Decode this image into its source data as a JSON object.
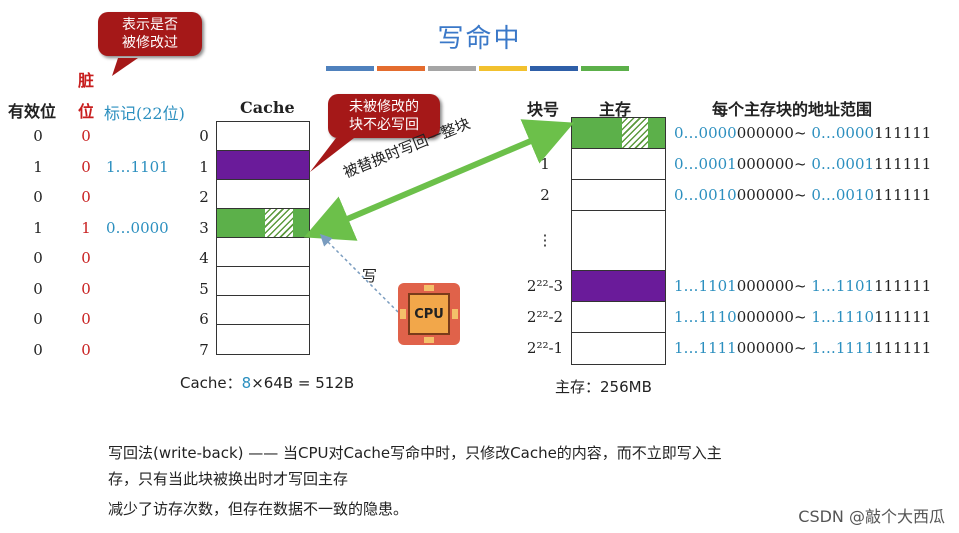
{
  "title": "写命中",
  "colorbar_colors": [
    "#4f81bd",
    "#e46c2e",
    "#a5a5a5",
    "#f2c12e",
    "#2e5fa8",
    "#5cb04a"
  ],
  "headers": {
    "valid": "有效位",
    "dirty_line1": "脏",
    "dirty_line2": "位",
    "tag": "标记(22位)",
    "cache": "Cache",
    "block_no": "块号",
    "main_memory": "主存",
    "addr_range": "每个主存块的地址范围"
  },
  "cache_rows": [
    {
      "valid": "0",
      "dirty": "0",
      "tag": "",
      "index": "0",
      "fill": "empty"
    },
    {
      "valid": "1",
      "dirty": "0",
      "tag": "1…1101",
      "index": "1",
      "fill": "purple"
    },
    {
      "valid": "0",
      "dirty": "0",
      "tag": "",
      "index": "2",
      "fill": "empty"
    },
    {
      "valid": "1",
      "dirty": "1",
      "tag": "0…0000",
      "index": "3",
      "fill": "green"
    },
    {
      "valid": "0",
      "dirty": "0",
      "tag": "",
      "index": "4",
      "fill": "empty"
    },
    {
      "valid": "0",
      "dirty": "0",
      "tag": "",
      "index": "5",
      "fill": "empty"
    },
    {
      "valid": "0",
      "dirty": "0",
      "tag": "",
      "index": "6",
      "fill": "empty"
    },
    {
      "valid": "0",
      "dirty": "0",
      "tag": "",
      "index": "7",
      "fill": "empty"
    }
  ],
  "cache_caption": {
    "prefix": "Cache：",
    "count": "8",
    "rest": "×64B = 512B"
  },
  "memory_rows": [
    {
      "index": "0",
      "fill": "green",
      "addr_blue": "0…0000",
      "addr_black1": "000000~",
      "addr_blue2": " 0…0000",
      "addr_black2": "111111"
    },
    {
      "index": "1",
      "fill": "empty",
      "addr_blue": "0…0001",
      "addr_black1": "000000~",
      "addr_blue2": " 0…0001",
      "addr_black2": "111111"
    },
    {
      "index": "2",
      "fill": "empty",
      "addr_blue": "0…0010",
      "addr_black1": "000000~",
      "addr_blue2": " 0…0010",
      "addr_black2": "111111"
    },
    {
      "index": "⋮",
      "fill": "dots",
      "addr_blue": "",
      "addr_black1": "",
      "addr_blue2": "",
      "addr_black2": ""
    },
    {
      "index": "2²²-3",
      "fill": "purple",
      "addr_blue": "1…1101",
      "addr_black1": "000000~",
      "addr_blue2": " 1…1101",
      "addr_black2": "111111"
    },
    {
      "index": "2²²-2",
      "fill": "empty",
      "addr_blue": "1…1110",
      "addr_black1": "000000~",
      "addr_blue2": " 1…1110",
      "addr_black2": "111111"
    },
    {
      "index": "2²²-1",
      "fill": "empty",
      "addr_blue": "1…1111",
      "addr_black1": "000000~",
      "addr_blue2": " 1…1111",
      "addr_black2": "111111"
    }
  ],
  "memory_caption": "主存：256MB",
  "bubbles": {
    "dirty_note": "表示是否\n被修改过",
    "no_write_note": "未被修改的\n块不必写回"
  },
  "arrow_labels": {
    "write_back": "被替换时写回一整块",
    "write": "写"
  },
  "cpu_label": "CPU",
  "bottom_text": {
    "line1": "写回法(write-back) —— 当CPU对Cache写命中时，只修改Cache的内容，而不立即写入主",
    "line2": "存，只有当此块被换出时才写回主存",
    "line3": "减少了访存次数，但存在数据不一致的隐患。"
  },
  "watermark": "CSDN @敲个大西瓜",
  "colors": {
    "purple": "#6a1b9a",
    "green": "#5cb04a",
    "blue_text": "#2b8fbf",
    "dirty_red": "#c81e1e",
    "bubble": "#a51818",
    "arrow_green": "#6cc04a"
  }
}
